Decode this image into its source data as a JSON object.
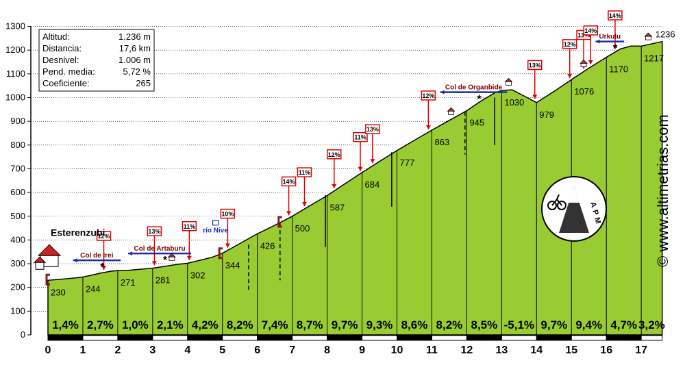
{
  "chart_data": {
    "type": "area",
    "ylim": [
      0,
      1300
    ],
    "xlim": [
      0,
      17.6
    ],
    "y_ticks": [
      0,
      100,
      200,
      300,
      400,
      500,
      600,
      700,
      800,
      900,
      1000,
      1100,
      1200,
      1300
    ],
    "x_ticks": [
      "0",
      "1",
      "2",
      "3",
      "4",
      "5",
      "6",
      "7",
      "8",
      "9",
      "10",
      "11",
      "12",
      "13",
      "14",
      "15",
      "16",
      "17"
    ],
    "profile": [
      [
        0,
        230
      ],
      [
        0.4,
        235
      ],
      [
        0.8,
        240
      ],
      [
        1.0,
        244
      ],
      [
        1.2,
        250
      ],
      [
        1.5,
        260
      ],
      [
        1.8,
        268
      ],
      [
        2.0,
        271
      ],
      [
        2.3,
        272
      ],
      [
        2.6,
        276
      ],
      [
        3.0,
        281
      ],
      [
        3.4,
        290
      ],
      [
        3.7,
        297
      ],
      [
        4.0,
        302
      ],
      [
        4.4,
        316
      ],
      [
        4.7,
        327
      ],
      [
        5.0,
        344
      ],
      [
        5.5,
        385
      ],
      [
        6.0,
        426
      ],
      [
        6.5,
        462
      ],
      [
        7.0,
        500
      ],
      [
        7.5,
        544
      ],
      [
        8.0,
        587
      ],
      [
        8.5,
        636
      ],
      [
        9.0,
        684
      ],
      [
        9.5,
        731
      ],
      [
        10.0,
        777
      ],
      [
        10.5,
        820
      ],
      [
        11.0,
        863
      ],
      [
        11.5,
        904
      ],
      [
        12.0,
        945
      ],
      [
        12.4,
        985
      ],
      [
        12.8,
        1020
      ],
      [
        13.0,
        1030
      ],
      [
        13.3,
        1033
      ],
      [
        13.6,
        1010
      ],
      [
        14.0,
        979
      ],
      [
        14.5,
        1026
      ],
      [
        15.0,
        1076
      ],
      [
        15.5,
        1124
      ],
      [
        16.0,
        1170
      ],
      [
        16.4,
        1205
      ],
      [
        16.7,
        1217
      ],
      [
        17.0,
        1217
      ],
      [
        17.6,
        1236
      ]
    ],
    "km_altitudes": [
      {
        "x": 0,
        "label": "230"
      },
      {
        "x": 1,
        "label": "244"
      },
      {
        "x": 2,
        "label": "271"
      },
      {
        "x": 3,
        "label": "281"
      },
      {
        "x": 4,
        "label": "302"
      },
      {
        "x": 5,
        "label": "344"
      },
      {
        "x": 6,
        "label": "426"
      },
      {
        "x": 7,
        "label": "500"
      },
      {
        "x": 8,
        "label": "587"
      },
      {
        "x": 9,
        "label": "684"
      },
      {
        "x": 10,
        "label": "777"
      },
      {
        "x": 11,
        "label": "863"
      },
      {
        "x": 12,
        "label": "945"
      },
      {
        "x": 13,
        "label": "1030"
      },
      {
        "x": 14,
        "label": "979"
      },
      {
        "x": 15,
        "label": "1076"
      },
      {
        "x": 16,
        "label": "1170"
      },
      {
        "x": 17,
        "label": "1217"
      },
      {
        "x": 17.6,
        "label": "1236"
      }
    ],
    "segment_grades": [
      "1,4%",
      "2,7%",
      "1,0%",
      "2,1%",
      "4,2%",
      "8,2%",
      "7,4%",
      "8,7%",
      "9,7%",
      "9,3%",
      "8,6%",
      "8,2%",
      "8,5%",
      "-5,1%",
      "9,7%",
      "9,4%",
      "4,7%",
      "3,2%"
    ],
    "max_grade_markers": [
      {
        "x": 1.6,
        "label": "12%"
      },
      {
        "x": 3.05,
        "label": "13%"
      },
      {
        "x": 4.05,
        "label": "11%"
      },
      {
        "x": 5.15,
        "label": "10%"
      },
      {
        "x": 6.9,
        "label": "14%"
      },
      {
        "x": 7.35,
        "label": "11%"
      },
      {
        "x": 8.2,
        "label": "12%"
      },
      {
        "x": 8.95,
        "label": "11%"
      },
      {
        "x": 9.3,
        "label": "13%"
      },
      {
        "x": 10.9,
        "label": "12%"
      },
      {
        "x": 13.95,
        "label": "13%"
      },
      {
        "x": 14.95,
        "label": "12%"
      },
      {
        "x": 15.35,
        "label": "13%"
      },
      {
        "x": 15.55,
        "label": "14%"
      },
      {
        "x": 16.25,
        "label": "14%"
      }
    ],
    "passes": [
      {
        "name": "Col de Irei",
        "x": 1.4
      },
      {
        "name": "Col de Artaburu",
        "x": 3.2
      },
      {
        "name": "Col de Organbide",
        "x": 12.2
      },
      {
        "name": "Urkulu",
        "x": 16.1
      }
    ],
    "river": "río Nive",
    "start": "Esterenzubi"
  },
  "stats": [
    {
      "label": "Altitud:",
      "value": "1.236 m"
    },
    {
      "label": "Distancia:",
      "value": "17,6 km"
    },
    {
      "label": "Desnivel:",
      "value": "1.006 m"
    },
    {
      "label": "Pend. media:",
      "value": "5,72 %"
    },
    {
      "label": "Coeficiente:",
      "value": "265"
    }
  ],
  "brand": "© www.altimetrias.com",
  "logo_text": "APM",
  "colors": {
    "fill": "#99cc33",
    "marker_red": "#e00000",
    "pass_bar": "#1c2f9c",
    "pass_text": "#7a0000"
  }
}
